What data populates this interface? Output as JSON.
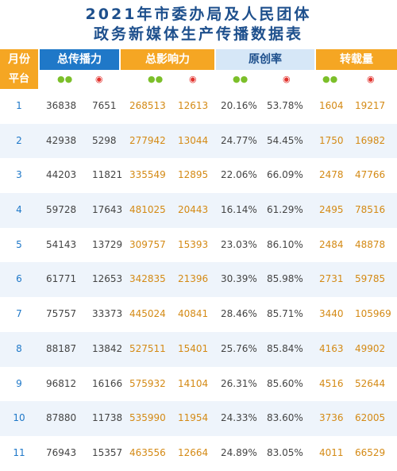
{
  "title": {
    "line1": "2021年市委办局及人民团体",
    "line2": "政务新媒体生产传播数据表"
  },
  "header": {
    "month": "月份",
    "platform": "平台",
    "total_reach": "总传播力",
    "total_influence": "总影响力",
    "originality": "原创率",
    "repost": "转载量"
  },
  "icons": {
    "wechat": "wechat-icon",
    "weibo": "weibo-icon"
  },
  "colors": {
    "blue": "#1f78c8",
    "orange": "#f5a623",
    "light_blue": "#d6e7f7"
  },
  "rows": [
    {
      "month": "1",
      "reach_wx": "36838",
      "reach_wb": "7651",
      "inf_wx": "268513",
      "inf_wb": "12613",
      "orig_wx": "20.16%",
      "orig_wb": "53.78%",
      "rep_wx": "1604",
      "rep_wb": "19217"
    },
    {
      "month": "2",
      "reach_wx": "42938",
      "reach_wb": "5298",
      "inf_wx": "277942",
      "inf_wb": "13044",
      "orig_wx": "24.77%",
      "orig_wb": "54.45%",
      "rep_wx": "1750",
      "rep_wb": "16982"
    },
    {
      "month": "3",
      "reach_wx": "44203",
      "reach_wb": "11821",
      "inf_wx": "335549",
      "inf_wb": "12895",
      "orig_wx": "22.06%",
      "orig_wb": "66.09%",
      "rep_wx": "2478",
      "rep_wb": "47766"
    },
    {
      "month": "4",
      "reach_wx": "59728",
      "reach_wb": "17643",
      "inf_wx": "481025",
      "inf_wb": "20443",
      "orig_wx": "16.14%",
      "orig_wb": "61.29%",
      "rep_wx": "2495",
      "rep_wb": "78516"
    },
    {
      "month": "5",
      "reach_wx": "54143",
      "reach_wb": "13729",
      "inf_wx": "309757",
      "inf_wb": "15393",
      "orig_wx": "23.03%",
      "orig_wb": "86.10%",
      "rep_wx": "2484",
      "rep_wb": "48878"
    },
    {
      "month": "6",
      "reach_wx": "61771",
      "reach_wb": "12653",
      "inf_wx": "342835",
      "inf_wb": "21396",
      "orig_wx": "30.39%",
      "orig_wb": "85.98%",
      "rep_wx": "2731",
      "rep_wb": "59785"
    },
    {
      "month": "7",
      "reach_wx": "75757",
      "reach_wb": "33373",
      "inf_wx": "445024",
      "inf_wb": "40841",
      "orig_wx": "28.46%",
      "orig_wb": "85.71%",
      "rep_wx": "3440",
      "rep_wb": "105969"
    },
    {
      "month": "8",
      "reach_wx": "88187",
      "reach_wb": "13842",
      "inf_wx": "527511",
      "inf_wb": "15401",
      "orig_wx": "25.76%",
      "orig_wb": "85.84%",
      "rep_wx": "4163",
      "rep_wb": "49902"
    },
    {
      "month": "9",
      "reach_wx": "96812",
      "reach_wb": "16166",
      "inf_wx": "575932",
      "inf_wb": "14104",
      "orig_wx": "26.31%",
      "orig_wb": "85.60%",
      "rep_wx": "4516",
      "rep_wb": "52644"
    },
    {
      "month": "10",
      "reach_wx": "87880",
      "reach_wb": "11738",
      "inf_wx": "535990",
      "inf_wb": "11954",
      "orig_wx": "24.33%",
      "orig_wb": "83.60%",
      "rep_wx": "3736",
      "rep_wb": "62005"
    },
    {
      "month": "11",
      "reach_wx": "76943",
      "reach_wb": "15357",
      "inf_wx": "463556",
      "inf_wb": "12664",
      "orig_wx": "24.89%",
      "orig_wb": "83.05%",
      "rep_wx": "4011",
      "rep_wb": "66529"
    }
  ]
}
